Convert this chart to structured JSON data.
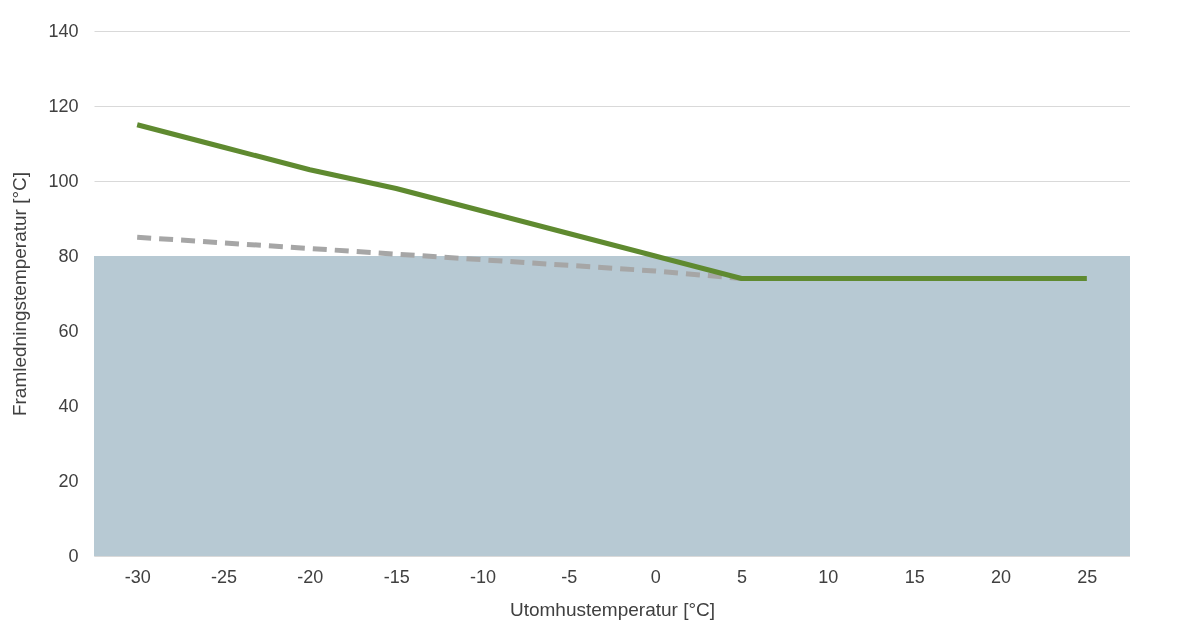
{
  "chart_data": {
    "type": "line",
    "xlabel": "Utomhustemperatur [°C]",
    "ylabel": "Framledningstemperatur [°C]",
    "categories": [
      "-30",
      "-25",
      "-20",
      "-15",
      "-10",
      "-5",
      "0",
      "5",
      "10",
      "15",
      "20",
      "25"
    ],
    "series": [
      {
        "color": "#a6a6a6",
        "line_style": "dashed",
        "values": [
          85,
          83.5,
          82,
          80.5,
          79,
          77.5,
          76,
          74,
          null,
          null,
          null,
          null
        ]
      },
      {
        "color": "#5f8a30",
        "line_style": "solid",
        "values": [
          115,
          109,
          103,
          98,
          92,
          86,
          80,
          74,
          74,
          74,
          74,
          74
        ]
      }
    ],
    "bands": [
      {
        "axis": "y",
        "from": 0,
        "to": 80,
        "color": "#b7c9d3"
      }
    ],
    "ylim": [
      0,
      140
    ],
    "yticks": [
      0,
      20,
      40,
      60,
      80,
      100,
      120,
      140
    ],
    "grid": "y"
  }
}
